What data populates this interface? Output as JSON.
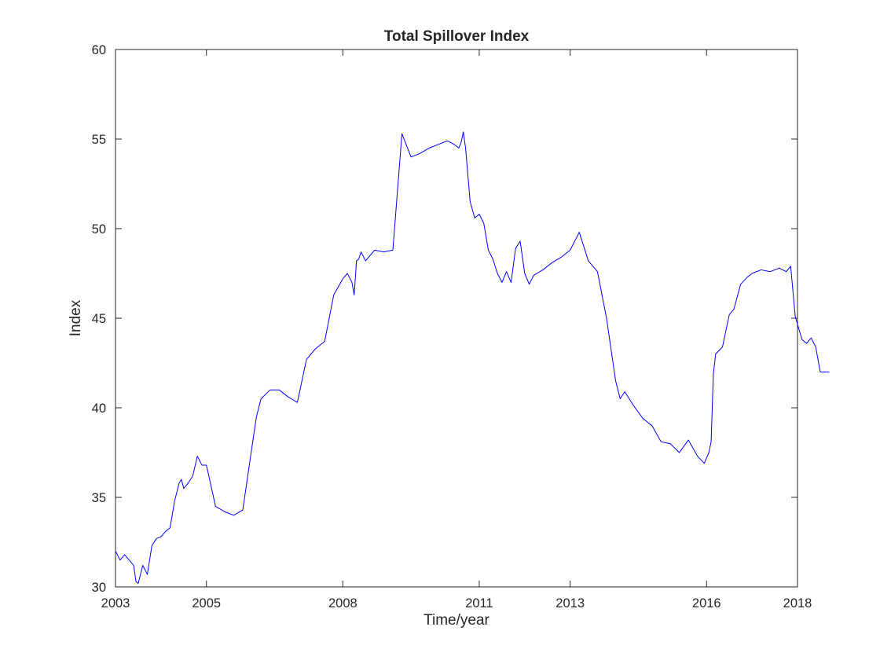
{
  "chart_data": {
    "type": "line",
    "title": "Total Spillover Index",
    "xlabel": "Time/year",
    "ylabel": "Index",
    "xlim": [
      2003,
      2018
    ],
    "ylim": [
      30,
      60
    ],
    "xticks": [
      2003,
      2005,
      2008,
      2011,
      2013,
      2016,
      2018
    ],
    "xtick_labels": [
      "2003",
      "2005",
      "2008",
      "2011",
      "2013",
      "2016",
      "2018"
    ],
    "yticks": [
      30,
      35,
      40,
      45,
      50,
      55,
      60
    ],
    "ytick_labels": [
      "30",
      "35",
      "40",
      "45",
      "50",
      "55",
      "60"
    ],
    "grid": false,
    "legend": "none",
    "series": [
      {
        "color": "#0000ff",
        "x": [
          2003.0,
          2003.1,
          2003.2,
          2003.3,
          2003.4,
          2003.45,
          2003.5,
          2003.6,
          2003.7,
          2003.8,
          2003.9,
          2004.0,
          2004.1,
          2004.2,
          2004.3,
          2004.4,
          2004.45,
          2004.5,
          2004.6,
          2004.7,
          2004.8,
          2004.9,
          2005.0,
          2005.2,
          2005.4,
          2005.6,
          2005.8,
          2006.0,
          2006.1,
          2006.2,
          2006.4,
          2006.6,
          2006.8,
          2007.0,
          2007.2,
          2007.4,
          2007.6,
          2007.8,
          2008.0,
          2008.1,
          2008.2,
          2008.25,
          2008.3,
          2008.35,
          2008.4,
          2008.5,
          2008.7,
          2008.9,
          2009.1,
          2009.3,
          2009.5,
          2009.7,
          2009.9,
          2010.1,
          2010.3,
          2010.45,
          2010.55,
          2010.6,
          2010.65,
          2010.7,
          2010.8,
          2010.9,
          2011.0,
          2011.1,
          2011.2,
          2011.3,
          2011.4,
          2011.5,
          2011.6,
          2011.7,
          2011.8,
          2011.9,
          2012.0,
          2012.1,
          2012.2,
          2012.4,
          2012.6,
          2012.8,
          2013.0,
          2013.2,
          2013.4,
          2013.6,
          2013.8,
          2014.0,
          2014.1,
          2014.2,
          2014.4,
          2014.6,
          2014.8,
          2015.0,
          2015.2,
          2015.4,
          2015.6,
          2015.8,
          2015.95,
          2016.05,
          2016.1,
          2016.15,
          2016.2,
          2016.35,
          2016.5,
          2016.6,
          2016.75,
          2016.9,
          2017.0,
          2017.2,
          2017.4,
          2017.6,
          2017.75,
          2017.85,
          2017.95,
          2018.1,
          2018.2,
          2018.3,
          2018.4,
          2018.5,
          2018.6,
          2018.7
        ],
        "y": [
          32.0,
          31.5,
          31.8,
          31.5,
          31.2,
          30.3,
          30.2,
          31.2,
          30.7,
          32.3,
          32.7,
          32.8,
          33.1,
          33.3,
          34.8,
          35.8,
          36.0,
          35.5,
          35.8,
          36.2,
          37.3,
          36.8,
          36.8,
          34.5,
          34.2,
          34.0,
          34.3,
          37.8,
          39.5,
          40.5,
          41.0,
          41.0,
          40.6,
          40.3,
          42.7,
          43.3,
          43.7,
          46.3,
          47.2,
          47.5,
          47.0,
          46.3,
          48.2,
          48.3,
          48.7,
          48.2,
          48.8,
          48.7,
          48.8,
          55.3,
          54.0,
          54.2,
          54.5,
          54.7,
          54.9,
          54.7,
          54.5,
          54.8,
          55.4,
          54.5,
          51.5,
          50.6,
          50.8,
          50.3,
          48.8,
          48.3,
          47.5,
          47.0,
          47.6,
          47.0,
          48.9,
          49.3,
          47.5,
          46.9,
          47.4,
          47.7,
          48.1,
          48.4,
          48.8,
          49.8,
          48.2,
          47.6,
          45.0,
          41.5,
          40.5,
          40.9,
          40.1,
          39.4,
          39.0,
          38.1,
          38.0,
          37.5,
          38.2,
          37.3,
          36.9,
          37.5,
          38.1,
          41.9,
          43.0,
          43.4,
          45.2,
          45.5,
          46.9,
          47.3,
          47.5,
          47.7,
          47.6,
          47.8,
          47.6,
          47.9,
          45.1,
          43.8,
          43.6,
          43.9,
          43.4,
          42.0,
          42.0,
          42.0
        ]
      }
    ]
  }
}
